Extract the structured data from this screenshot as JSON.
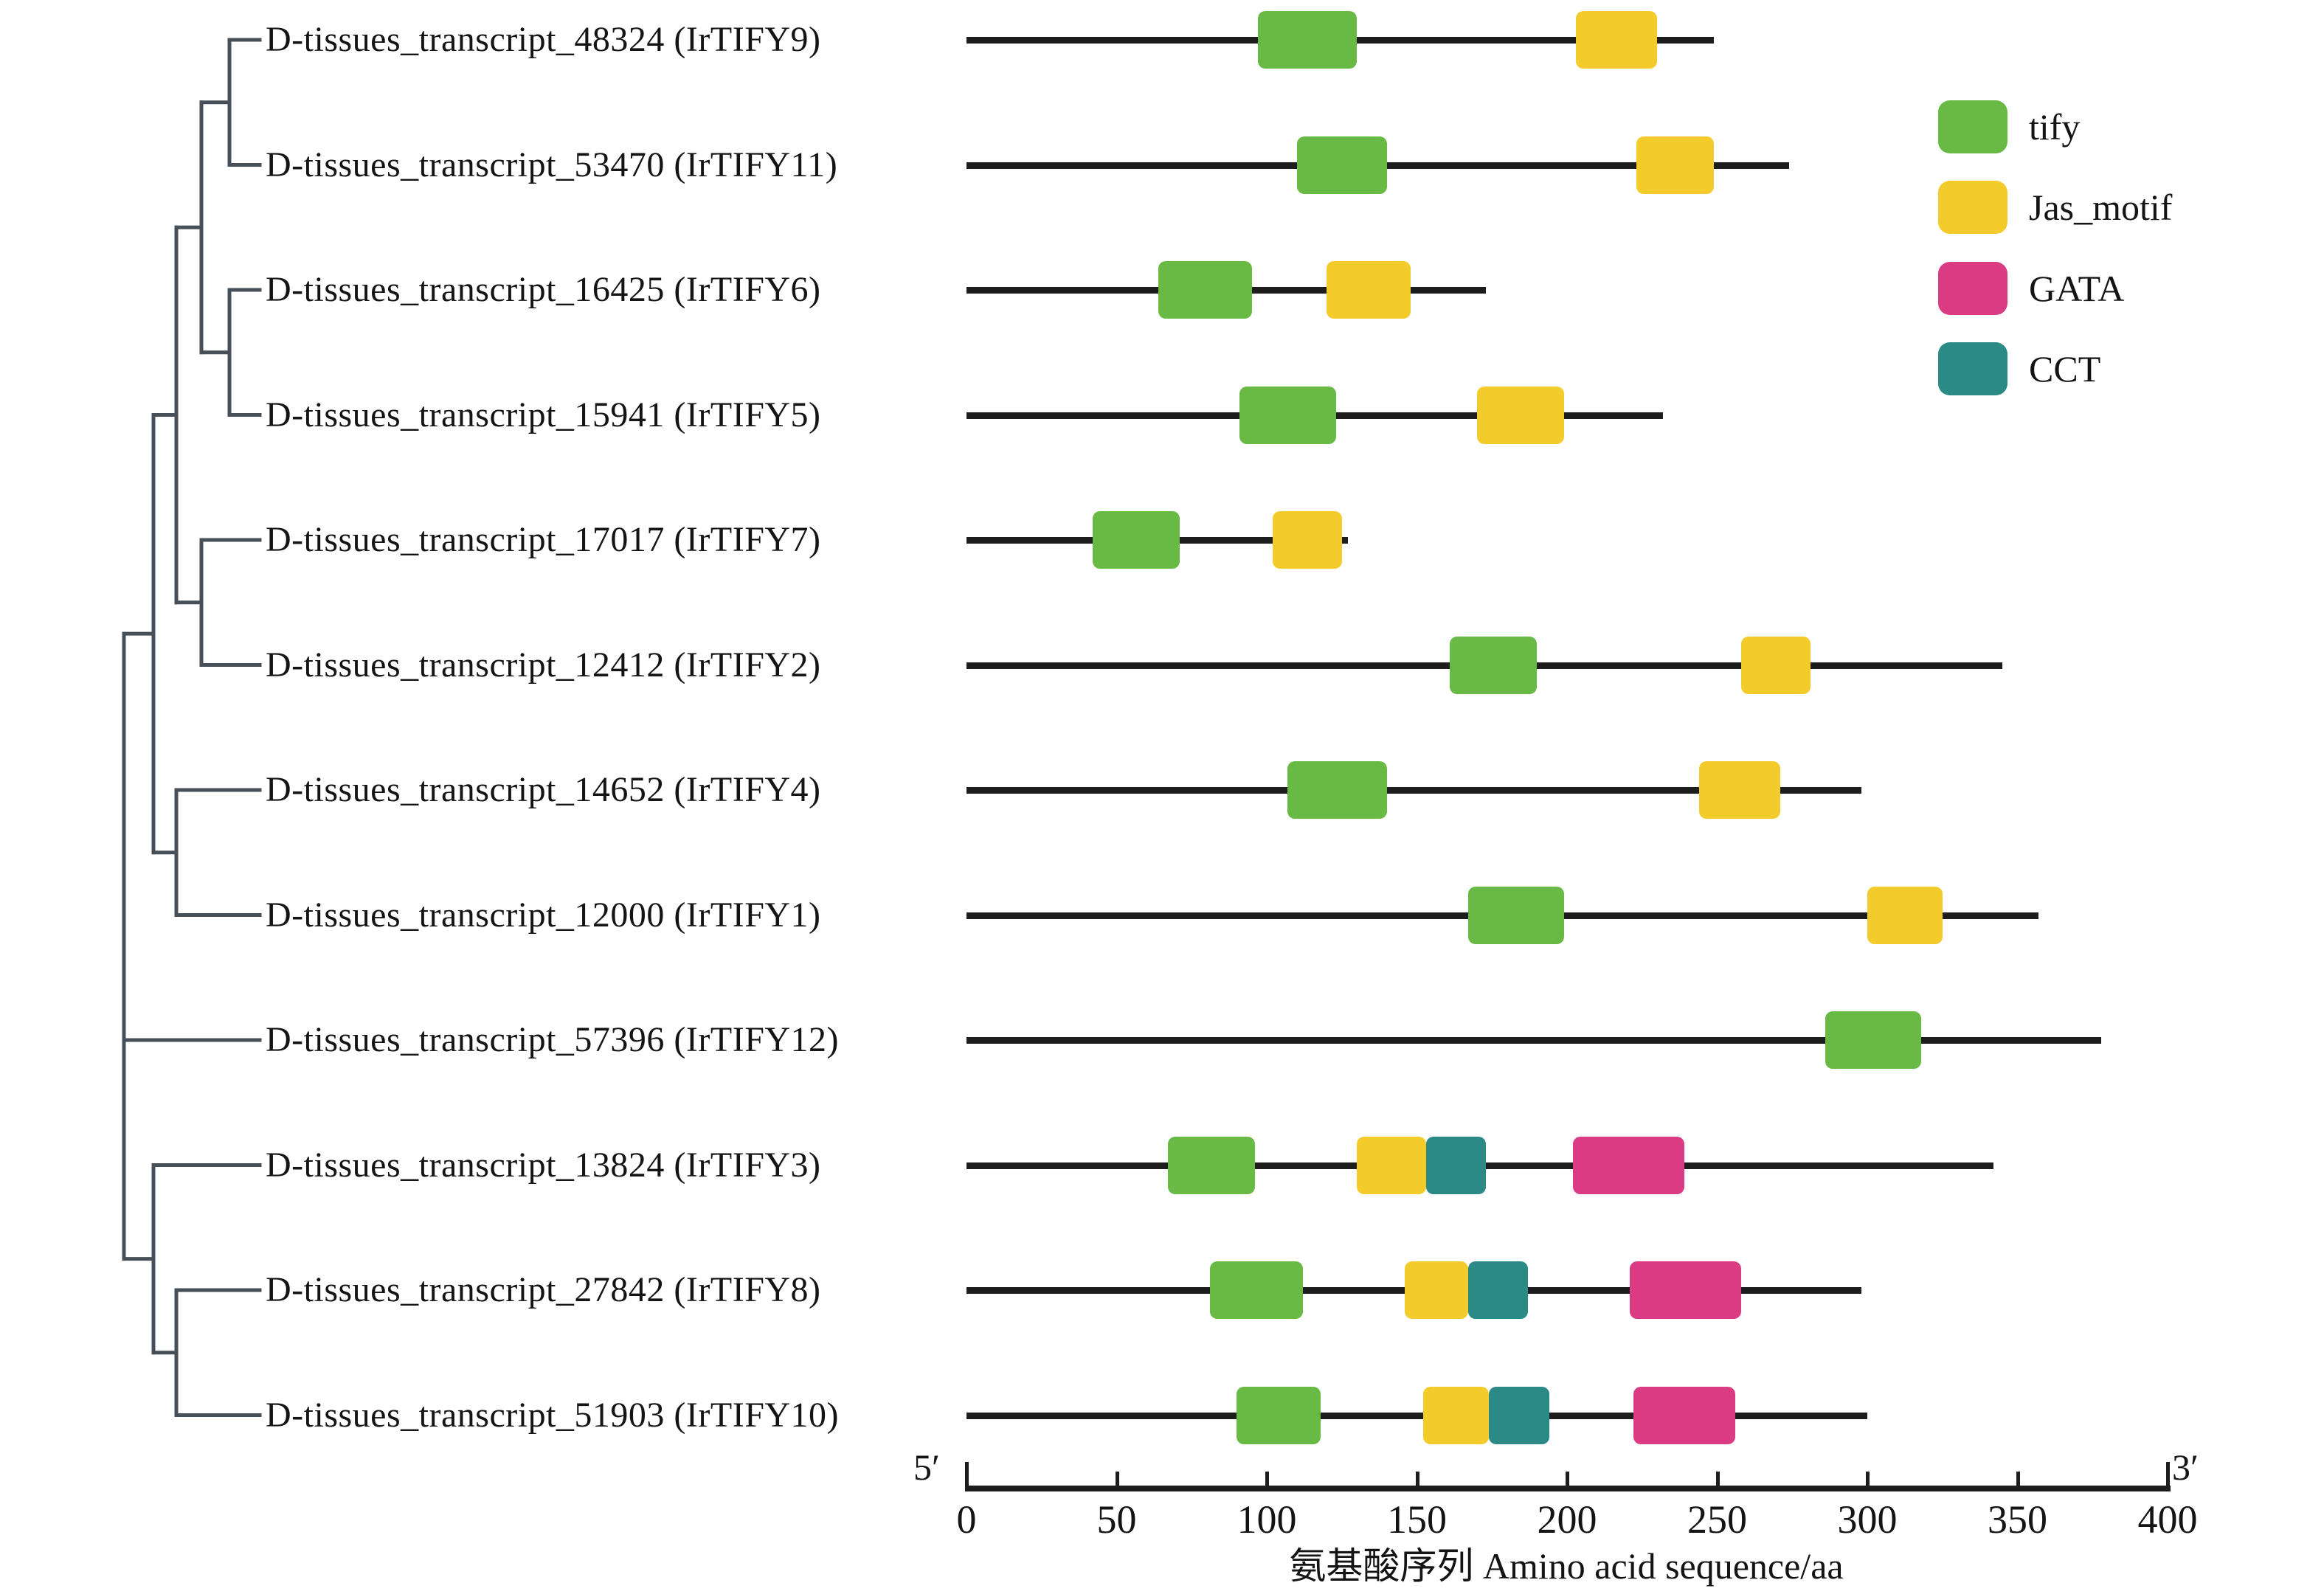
{
  "chart_data": {
    "type": "table",
    "description": "Phylogenetic tree and conserved domain architecture of 12 IrTIFY proteins",
    "xlabel": "氨基酸序列 Amino acid sequence/aa",
    "x_range": [
      0,
      400
    ],
    "x_ticks": [
      0,
      50,
      100,
      150,
      200,
      250,
      300,
      350,
      400
    ],
    "orientation_labels": {
      "start": "5′",
      "end": "3′"
    },
    "grid": false,
    "legend_position": "top-right",
    "legend": [
      {
        "key": "tify",
        "label": "tify",
        "color": "#68ba45"
      },
      {
        "key": "Jas_motif",
        "label": "Jas_motif",
        "color": "#f3cc2b"
      },
      {
        "key": "GATA",
        "label": "GATA",
        "color": "#db3b83"
      },
      {
        "key": "CCT",
        "label": "CCT",
        "color": "#2b8a85"
      }
    ],
    "rows": [
      {
        "label": "D-tissues_transcript_48324 (IrTIFY9)",
        "gene": "IrTIFY9",
        "length_aa": 249,
        "domains": [
          {
            "type": "tify",
            "start": 97,
            "end": 130
          },
          {
            "type": "Jas_motif",
            "start": 203,
            "end": 230
          }
        ]
      },
      {
        "label": "D-tissues_transcript_53470 (IrTIFY11)",
        "gene": "IrTIFY11",
        "length_aa": 274,
        "domains": [
          {
            "type": "tify",
            "start": 110,
            "end": 140
          },
          {
            "type": "Jas_motif",
            "start": 223,
            "end": 249
          }
        ]
      },
      {
        "label": "D-tissues_transcript_16425 (IrTIFY6)",
        "gene": "IrTIFY6",
        "length_aa": 173,
        "domains": [
          {
            "type": "tify",
            "start": 64,
            "end": 95
          },
          {
            "type": "Jas_motif",
            "start": 120,
            "end": 148
          }
        ]
      },
      {
        "label": "D-tissues_transcript_15941 (IrTIFY5)",
        "gene": "IrTIFY5",
        "length_aa": 232,
        "domains": [
          {
            "type": "tify",
            "start": 91,
            "end": 123
          },
          {
            "type": "Jas_motif",
            "start": 170,
            "end": 199
          }
        ]
      },
      {
        "label": "D-tissues_transcript_17017 (IrTIFY7)",
        "gene": "IrTIFY7",
        "length_aa": 127,
        "domains": [
          {
            "type": "tify",
            "start": 42,
            "end": 71
          },
          {
            "type": "Jas_motif",
            "start": 102,
            "end": 125
          }
        ]
      },
      {
        "label": "D-tissues_transcript_12412 (IrTIFY2)",
        "gene": "IrTIFY2",
        "length_aa": 345,
        "domains": [
          {
            "type": "tify",
            "start": 161,
            "end": 190
          },
          {
            "type": "Jas_motif",
            "start": 258,
            "end": 281
          }
        ]
      },
      {
        "label": "D-tissues_transcript_14652 (IrTIFY4)",
        "gene": "IrTIFY4",
        "length_aa": 298,
        "domains": [
          {
            "type": "tify",
            "start": 107,
            "end": 140
          },
          {
            "type": "Jas_motif",
            "start": 244,
            "end": 271
          }
        ]
      },
      {
        "label": "D-tissues_transcript_12000 (IrTIFY1)",
        "gene": "IrTIFY1",
        "length_aa": 357,
        "domains": [
          {
            "type": "tify",
            "start": 167,
            "end": 199
          },
          {
            "type": "Jas_motif",
            "start": 300,
            "end": 325
          }
        ]
      },
      {
        "label": "D-tissues_transcript_57396 (IrTIFY12)",
        "gene": "IrTIFY12",
        "length_aa": 378,
        "domains": [
          {
            "type": "tify",
            "start": 286,
            "end": 318
          }
        ]
      },
      {
        "label": "D-tissues_transcript_13824 (IrTIFY3)",
        "gene": "IrTIFY3",
        "length_aa": 342,
        "domains": [
          {
            "type": "tify",
            "start": 67,
            "end": 96
          },
          {
            "type": "Jas_motif",
            "start": 130,
            "end": 153
          },
          {
            "type": "CCT",
            "start": 153,
            "end": 173
          },
          {
            "type": "GATA",
            "start": 202,
            "end": 239
          }
        ]
      },
      {
        "label": "D-tissues_transcript_27842 (IrTIFY8)",
        "gene": "IrTIFY8",
        "length_aa": 298,
        "domains": [
          {
            "type": "tify",
            "start": 81,
            "end": 112
          },
          {
            "type": "Jas_motif",
            "start": 146,
            "end": 167
          },
          {
            "type": "CCT",
            "start": 167,
            "end": 187
          },
          {
            "type": "GATA",
            "start": 221,
            "end": 258
          }
        ]
      },
      {
        "label": "D-tissues_transcript_51903 (IrTIFY10)",
        "gene": "IrTIFY10",
        "length_aa": 300,
        "domains": [
          {
            "type": "tify",
            "start": 90,
            "end": 118
          },
          {
            "type": "Jas_motif",
            "start": 152,
            "end": 174
          },
          {
            "type": "CCT",
            "start": 174,
            "end": 194
          },
          {
            "type": "GATA",
            "start": 222,
            "end": 256
          }
        ]
      }
    ],
    "tree": {
      "topology": [
        [
          [
            [
              [
                0,
                1
              ],
              [
                2,
                3
              ]
            ],
            [
              4,
              5
            ]
          ],
          [
            6,
            7
          ]
        ],
        8,
        [
          9,
          [
            10,
            11
          ]
        ]
      ],
      "line_color": "#475058"
    }
  }
}
